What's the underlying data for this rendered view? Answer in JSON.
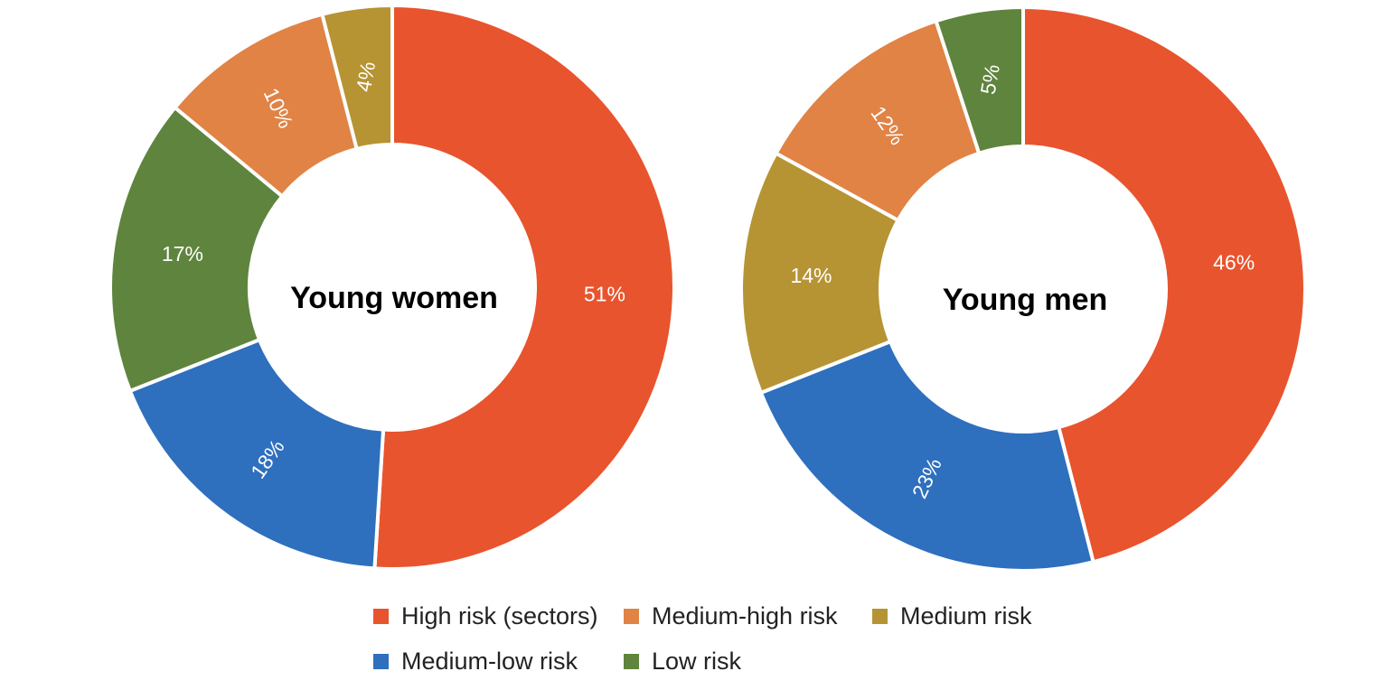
{
  "chart_data": [
    {
      "type": "pie",
      "center_label": "Young women",
      "categories": [
        "High risk (sectors)",
        "Medium-low risk",
        "Low risk",
        "Medium-high risk",
        "Medium risk"
      ],
      "values": [
        51,
        18,
        17,
        10,
        4
      ],
      "data_labels": [
        "51%",
        "18%",
        "17%",
        "10%",
        "4%"
      ]
    },
    {
      "type": "pie",
      "center_label": "Young men",
      "categories": [
        "High risk (sectors)",
        "Medium-low risk",
        "Medium risk",
        "Medium-high risk",
        "Low risk"
      ],
      "values": [
        46,
        23,
        14,
        12,
        5
      ],
      "data_labels": [
        "46%",
        "23%",
        "14%",
        "12%",
        "5%"
      ]
    }
  ],
  "legend": [
    {
      "label": "High risk (sectors)",
      "color": "#E8542E"
    },
    {
      "label": "Medium-high risk",
      "color": "#E08345"
    },
    {
      "label": "Medium risk",
      "color": "#B69434"
    },
    {
      "label": "Medium-low risk",
      "color": "#2E6FBE"
    },
    {
      "label": "Low risk",
      "color": "#5F843E"
    }
  ]
}
